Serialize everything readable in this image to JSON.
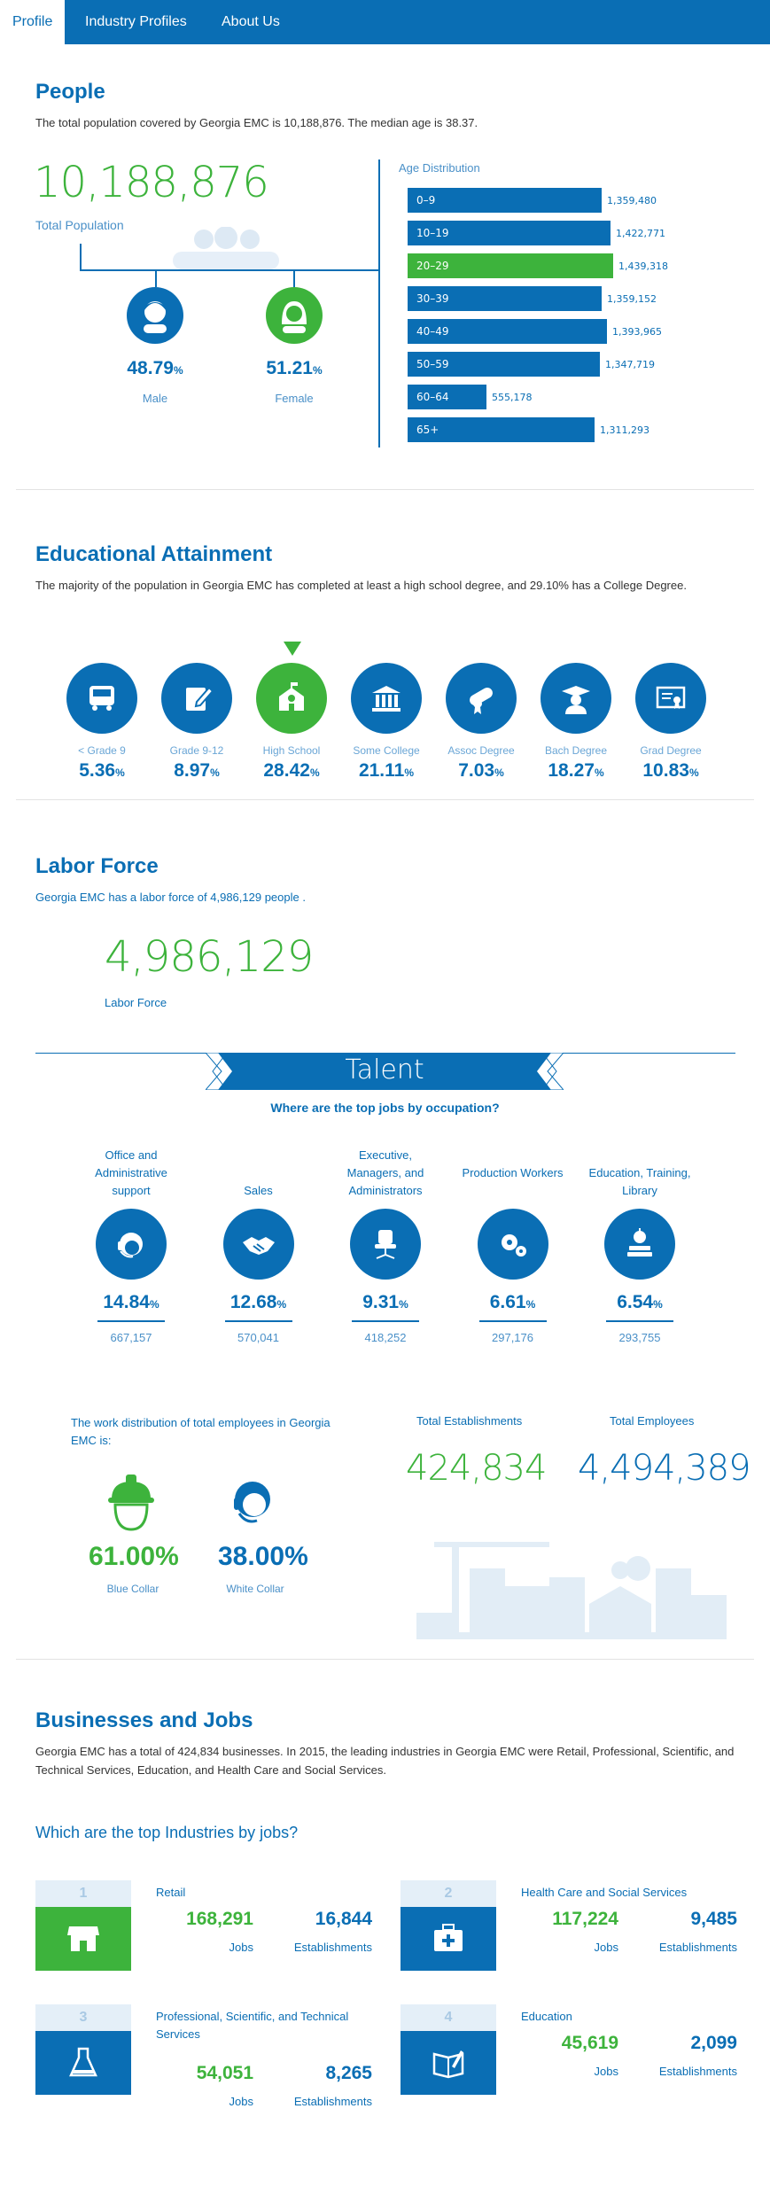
{
  "nav": {
    "items": [
      "Profile",
      "Industry Profiles",
      "About Us"
    ]
  },
  "people": {
    "title": "People",
    "description": "The total population covered by Georgia EMC is 10,188,876. The median age is 38.37.",
    "total_population": "10,188,876",
    "total_population_label": "Total Population",
    "male_pct": "48.79",
    "male_label": "Male",
    "female_pct": "51.21",
    "female_label": "Female",
    "pct_sign": "%",
    "age_title": "Age Distribution"
  },
  "chart_data": {
    "type": "bar",
    "title": "Age Distribution",
    "categories": [
      "0-9",
      "10-19",
      "20-29",
      "30-39",
      "40-49",
      "50-59",
      "60-64",
      "65+"
    ],
    "values": [
      1359480,
      1422771,
      1439318,
      1359152,
      1393965,
      1347719,
      555178,
      1311293
    ],
    "labels": [
      "1,359,480",
      "1,422,771",
      "1,439,318",
      "1,359,152",
      "1,393,965",
      "1,347,719",
      "555,178",
      "1,311,293"
    ],
    "highlight": "20-29"
  },
  "education": {
    "title": "Educational Attainment",
    "description": "The majority of the population in Georgia EMC has completed at least a high school degree, and 29.10% has a College Degree.",
    "items": [
      {
        "label": "< Grade 9",
        "pct": "5.36"
      },
      {
        "label": "Grade 9-12",
        "pct": "8.97"
      },
      {
        "label": "High School",
        "pct": "28.42"
      },
      {
        "label": "Some College",
        "pct": "21.11"
      },
      {
        "label": "Assoc Degree",
        "pct": "7.03"
      },
      {
        "label": "Bach Degree",
        "pct": "18.27"
      },
      {
        "label": "Grad Degree",
        "pct": "10.83"
      }
    ]
  },
  "labor": {
    "title": "Labor Force",
    "description": "Georgia EMC has a labor force of 4,986,129 people .",
    "value": "4,986,129",
    "label": "Labor Force"
  },
  "talent": {
    "banner": "Talent",
    "question": "Where are the top jobs by occupation?",
    "occupations": [
      {
        "label": "Office and Administrative support",
        "pct": "14.84",
        "count": "667,157"
      },
      {
        "label": "Sales",
        "pct": "12.68",
        "count": "570,041"
      },
      {
        "label": "Executive, Managers, and Administrators",
        "pct": "9.31",
        "count": "418,252"
      },
      {
        "label": "Production Workers",
        "pct": "6.61",
        "count": "297,176"
      },
      {
        "label": "Education, Training, Library",
        "pct": "6.54",
        "count": "293,755"
      }
    ],
    "work_dist_text": "The work distribution of total employees in Georgia EMC is:",
    "blue_collar_pct": "61.00%",
    "blue_collar_label": "Blue Collar",
    "white_collar_pct": "38.00%",
    "white_collar_label": "White Collar",
    "establishments_label": "Total Establishments",
    "establishments": "424,834",
    "employees_label": "Total Employees",
    "employees": "4,494,389"
  },
  "business": {
    "title": "Businesses and Jobs",
    "description": "Georgia EMC has a total of 424,834 businesses. In 2015, the leading industries in Georgia EMC were Retail, Professional, Scientific, and Technical Services, Education, and Health Care and Social Services.",
    "question": "Which are the top Industries by jobs?",
    "jobs_label": "Jobs",
    "est_label": "Establishments",
    "industries": [
      {
        "rank": "1",
        "name": "Retail",
        "jobs": "168,291",
        "establishments": "16,844"
      },
      {
        "rank": "2",
        "name": "Health Care and Social Services",
        "jobs": "117,224",
        "establishments": "9,485"
      },
      {
        "rank": "3",
        "name": "Professional, Scientific, and Technical Services",
        "jobs": "54,051",
        "establishments": "8,265"
      },
      {
        "rank": "4",
        "name": "Education",
        "jobs": "45,619",
        "establishments": "2,099"
      }
    ]
  }
}
